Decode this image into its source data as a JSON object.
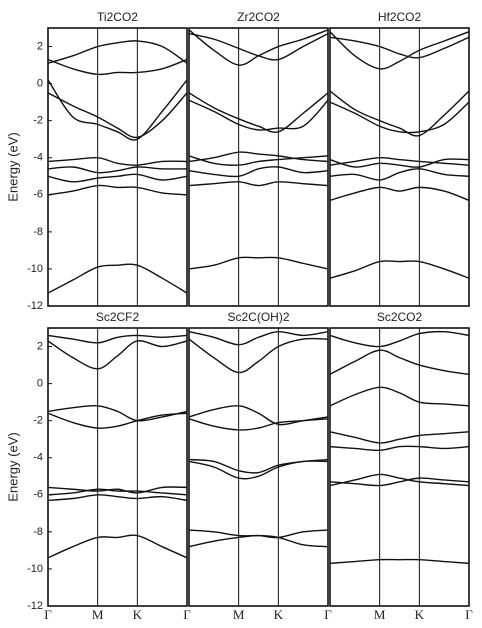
{
  "chart_data": [
    {
      "type": "line",
      "title": "Ti2CO2",
      "ylabel": "Energy (eV)",
      "color": "#111111",
      "x": [
        0,
        0.5,
        1,
        1.4,
        1.8,
        2.3,
        2.8
      ],
      "xlim": [
        0,
        2.8
      ],
      "ylim": [
        -12,
        3
      ],
      "yticks": [
        2,
        0,
        -2,
        -4,
        -6,
        -8,
        -10,
        -12
      ],
      "series": [
        {
          "values": [
            -11.3,
            -10.6,
            -9.9,
            -9.8,
            -9.8,
            -10.5,
            -11.3
          ]
        },
        {
          "values": [
            -6.0,
            -5.8,
            -5.5,
            -5.6,
            -5.6,
            -5.9,
            -6.0
          ]
        },
        {
          "values": [
            -5.0,
            -5.3,
            -5.1,
            -5.0,
            -4.9,
            -5.2,
            -5.0
          ]
        },
        {
          "values": [
            -4.6,
            -4.5,
            -4.8,
            -4.7,
            -4.5,
            -4.6,
            -4.6
          ]
        },
        {
          "values": [
            -4.2,
            -4.1,
            -4.0,
            -4.3,
            -4.4,
            -4.2,
            -4.2
          ]
        },
        {
          "values": [
            0.2,
            -1.8,
            -2.2,
            -2.6,
            -3.0,
            -1.5,
            0.2
          ]
        },
        {
          "values": [
            -0.5,
            -1.2,
            -1.8,
            -2.4,
            -2.9,
            -2.0,
            -0.5
          ]
        },
        {
          "values": [
            1.1,
            1.5,
            2.0,
            2.2,
            2.3,
            2.0,
            1.1
          ]
        },
        {
          "values": [
            1.3,
            0.8,
            0.5,
            0.6,
            0.6,
            0.8,
            1.3
          ]
        }
      ]
    },
    {
      "type": "line",
      "title": "Zr2CO2",
      "color": "#111111",
      "x": [
        0,
        0.5,
        1,
        1.4,
        1.8,
        2.3,
        2.8
      ],
      "xlim": [
        0,
        2.8
      ],
      "ylim": [
        -12,
        3
      ],
      "series": [
        {
          "values": [
            -10.0,
            -9.8,
            -9.4,
            -9.4,
            -9.4,
            -9.7,
            -10.0
          ]
        },
        {
          "values": [
            -5.5,
            -5.4,
            -5.3,
            -5.5,
            -5.3,
            -5.4,
            -5.5
          ]
        },
        {
          "values": [
            -4.7,
            -4.9,
            -5.0,
            -4.6,
            -4.5,
            -4.8,
            -4.7
          ]
        },
        {
          "values": [
            -4.2,
            -4.0,
            -3.7,
            -3.8,
            -3.9,
            -4.1,
            -4.2
          ]
        },
        {
          "values": [
            -3.9,
            -4.3,
            -4.4,
            -4.2,
            -4.1,
            -4.0,
            -3.9
          ]
        },
        {
          "values": [
            -0.5,
            -1.3,
            -1.9,
            -2.3,
            -2.6,
            -1.6,
            -0.5
          ]
        },
        {
          "values": [
            -0.9,
            -1.5,
            -2.2,
            -2.5,
            -2.4,
            -2.3,
            -0.9
          ]
        },
        {
          "values": [
            2.9,
            1.8,
            1.0,
            1.5,
            2.0,
            2.4,
            2.9
          ]
        },
        {
          "values": [
            2.7,
            2.4,
            1.9,
            1.5,
            1.3,
            2.0,
            2.7
          ]
        }
      ]
    },
    {
      "type": "line",
      "title": "Hf2CO2",
      "color": "#111111",
      "x": [
        0,
        0.5,
        1,
        1.4,
        1.8,
        2.3,
        2.8
      ],
      "xlim": [
        0,
        2.8
      ],
      "ylim": [
        -12,
        3
      ],
      "series": [
        {
          "values": [
            -10.5,
            -10.1,
            -9.6,
            -9.6,
            -9.6,
            -10.0,
            -10.5
          ]
        },
        {
          "values": [
            -6.3,
            -5.9,
            -5.6,
            -5.8,
            -5.6,
            -5.8,
            -6.3
          ]
        },
        {
          "values": [
            -5.0,
            -4.9,
            -5.2,
            -4.8,
            -4.6,
            -4.9,
            -5.0
          ]
        },
        {
          "values": [
            -4.4,
            -4.2,
            -4.0,
            -4.1,
            -4.2,
            -4.3,
            -4.4
          ]
        },
        {
          "values": [
            -4.1,
            -4.5,
            -4.3,
            -4.4,
            -4.5,
            -4.1,
            -4.1
          ]
        },
        {
          "values": [
            -0.4,
            -1.4,
            -2.0,
            -2.4,
            -2.8,
            -1.7,
            -0.4
          ]
        },
        {
          "values": [
            -1.0,
            -1.6,
            -2.3,
            -2.6,
            -2.6,
            -2.2,
            -1.0
          ]
        },
        {
          "values": [
            2.8,
            1.5,
            0.8,
            1.2,
            1.8,
            2.3,
            2.8
          ]
        },
        {
          "values": [
            2.5,
            2.3,
            2.0,
            1.6,
            1.4,
            1.9,
            2.5
          ]
        }
      ]
    },
    {
      "type": "line",
      "title": "Sc2CF2",
      "ylabel": "Energy (eV)",
      "color": "#111111",
      "x": [
        0,
        0.5,
        1,
        1.4,
        1.8,
        2.3,
        2.8
      ],
      "xlim": [
        0,
        2.8
      ],
      "ylim": [
        -12,
        3
      ],
      "yticks": [
        2,
        0,
        -2,
        -4,
        -6,
        -8,
        -10,
        -12
      ],
      "xticks": [
        {
          "value": 0,
          "label": "Γ"
        },
        {
          "value": 1,
          "label": "M"
        },
        {
          "value": 1.8,
          "label": "K"
        },
        {
          "value": 2.8,
          "label": "Γ"
        }
      ],
      "series": [
        {
          "values": [
            -9.4,
            -8.8,
            -8.3,
            -8.3,
            -8.2,
            -8.8,
            -9.4
          ]
        },
        {
          "values": [
            -6.3,
            -6.2,
            -6.0,
            -6.1,
            -6.2,
            -6.1,
            -6.3
          ]
        },
        {
          "values": [
            -6.0,
            -5.9,
            -5.7,
            -5.8,
            -5.8,
            -5.9,
            -6.0
          ]
        },
        {
          "values": [
            -5.6,
            -5.7,
            -5.8,
            -5.7,
            -5.9,
            -5.6,
            -5.6
          ]
        },
        {
          "values": [
            -1.5,
            -1.3,
            -1.2,
            -1.5,
            -2.0,
            -1.8,
            -1.5
          ]
        },
        {
          "values": [
            -1.6,
            -2.1,
            -2.4,
            -2.3,
            -2.0,
            -1.7,
            -1.6
          ]
        },
        {
          "values": [
            2.3,
            1.4,
            0.8,
            1.5,
            2.3,
            2.0,
            2.3
          ]
        },
        {
          "values": [
            2.6,
            2.4,
            2.2,
            2.5,
            2.6,
            2.5,
            2.6
          ]
        }
      ]
    },
    {
      "type": "line",
      "title": "Sc2C(OH)2",
      "color": "#111111",
      "x": [
        0,
        0.5,
        1,
        1.4,
        1.8,
        2.3,
        2.8
      ],
      "xlim": [
        0,
        2.8
      ],
      "ylim": [
        -12,
        3
      ],
      "xticks": [
        {
          "value": 1,
          "label": "M"
        },
        {
          "value": 1.8,
          "label": "K"
        },
        {
          "value": 2.8,
          "label": "Γ"
        }
      ],
      "series": [
        {
          "values": [
            -8.8,
            -8.5,
            -8.3,
            -8.2,
            -8.3,
            -8.7,
            -8.8
          ]
        },
        {
          "values": [
            -7.9,
            -8.0,
            -8.2,
            -8.2,
            -8.3,
            -8.0,
            -7.9
          ]
        },
        {
          "values": [
            -4.2,
            -4.5,
            -5.1,
            -5.0,
            -4.5,
            -4.2,
            -4.2
          ]
        },
        {
          "values": [
            -4.1,
            -4.2,
            -4.7,
            -4.8,
            -4.4,
            -4.2,
            -4.1
          ]
        },
        {
          "values": [
            -1.8,
            -1.4,
            -1.2,
            -1.6,
            -2.2,
            -2.0,
            -1.8
          ]
        },
        {
          "values": [
            -1.9,
            -2.3,
            -2.5,
            -2.4,
            -2.1,
            -2.0,
            -1.9
          ]
        },
        {
          "values": [
            2.4,
            1.4,
            0.6,
            1.2,
            2.0,
            2.4,
            2.4
          ]
        },
        {
          "values": [
            2.8,
            2.5,
            2.1,
            2.5,
            2.8,
            2.6,
            2.8
          ]
        }
      ]
    },
    {
      "type": "line",
      "title": "Sc2CO2",
      "color": "#111111",
      "x": [
        0,
        0.5,
        1,
        1.4,
        1.8,
        2.3,
        2.8
      ],
      "xlim": [
        0,
        2.8
      ],
      "ylim": [
        -12,
        3
      ],
      "xticks": [
        {
          "value": 1,
          "label": "M"
        },
        {
          "value": 1.8,
          "label": "K"
        },
        {
          "value": 2.8,
          "label": "Γ"
        }
      ],
      "series": [
        {
          "values": [
            -9.7,
            -9.6,
            -9.5,
            -9.5,
            -9.5,
            -9.6,
            -9.7
          ]
        },
        {
          "values": [
            -5.5,
            -5.2,
            -4.9,
            -5.1,
            -5.3,
            -5.4,
            -5.5
          ]
        },
        {
          "values": [
            -5.3,
            -5.4,
            -5.5,
            -5.3,
            -5.1,
            -5.2,
            -5.3
          ]
        },
        {
          "values": [
            -3.4,
            -3.5,
            -3.6,
            -3.4,
            -3.4,
            -3.5,
            -3.4
          ]
        },
        {
          "values": [
            -2.6,
            -2.9,
            -3.2,
            -3.0,
            -2.8,
            -2.7,
            -2.6
          ]
        },
        {
          "values": [
            -1.2,
            -0.6,
            -0.2,
            -0.5,
            -1.0,
            -1.1,
            -1.2
          ]
        },
        {
          "values": [
            0.5,
            1.2,
            1.8,
            1.4,
            1.0,
            0.7,
            0.5
          ]
        },
        {
          "values": [
            2.6,
            2.2,
            2.0,
            2.3,
            2.7,
            2.8,
            2.6
          ]
        }
      ]
    }
  ]
}
